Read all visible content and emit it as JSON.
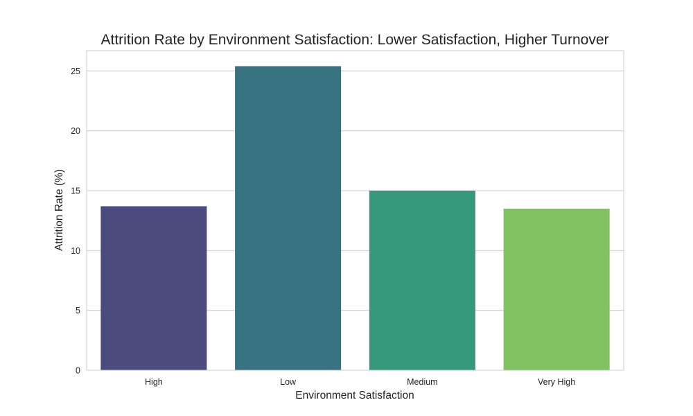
{
  "chart_data": {
    "type": "bar",
    "title": "Attrition Rate by Environment Satisfaction: Lower Satisfaction, Higher Turnover",
    "xlabel": "Environment Satisfaction",
    "ylabel": "Attrition Rate (%)",
    "categories": [
      "High",
      "Low",
      "Medium",
      "Very High"
    ],
    "values": [
      13.7,
      25.4,
      15.0,
      13.5
    ],
    "colors": [
      "#4b4c7d",
      "#36727f",
      "#36997b",
      "#80c261"
    ],
    "ylim": [
      0,
      26.7
    ],
    "yticks": [
      0,
      5,
      10,
      15,
      20,
      25
    ],
    "grid": "horizontal",
    "legend": "none"
  }
}
